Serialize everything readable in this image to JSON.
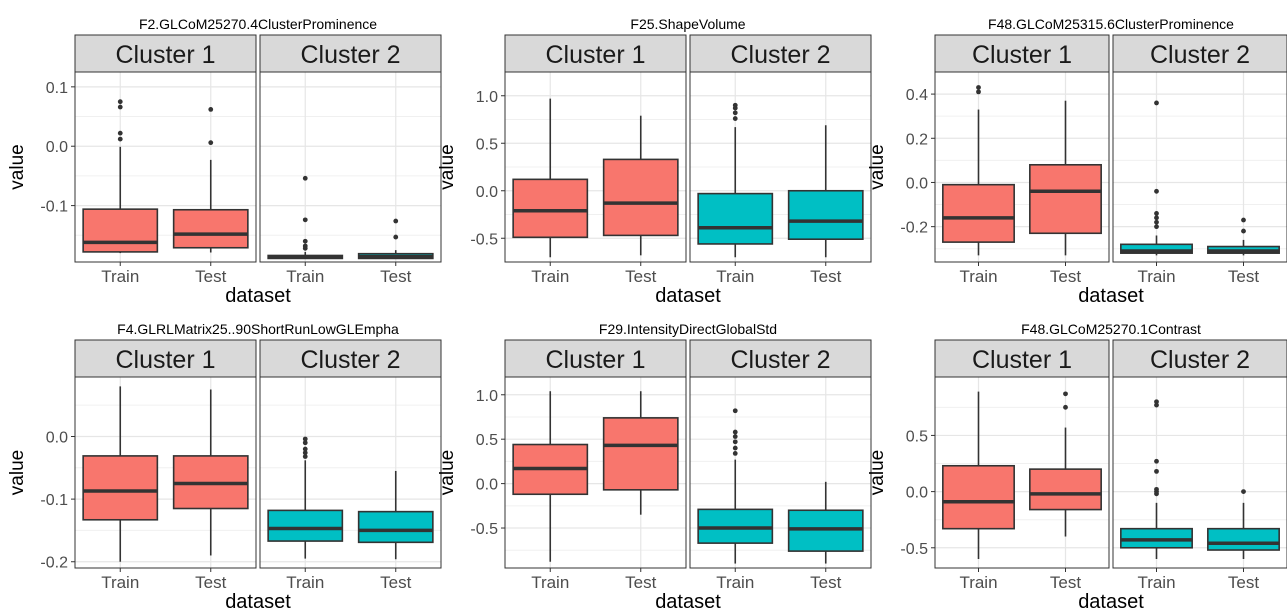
{
  "x_axis_label": "dataset",
  "y_axis_label": "value",
  "colors": {
    "cluster1": "#F8766D",
    "cluster2": "#00BFC4"
  },
  "chart_data": [
    {
      "type": "boxplot",
      "title": "F2.GLCoM25270.4ClusterProminence",
      "xlabel": "dataset",
      "ylabel": "value",
      "ylim": [
        -0.195,
        0.125
      ],
      "yticks": [
        0.1,
        0.0,
        -0.1
      ],
      "ytick_labels": [
        "0.1",
        "0.0",
        "-0.1"
      ],
      "facets": [
        {
          "name": "Cluster 1",
          "color": "#F8766D",
          "categories": [
            "Train",
            "Test"
          ],
          "boxes": [
            {
              "category": "Train",
              "min": -0.18,
              "q1": -0.178,
              "median": -0.162,
              "q3": -0.106,
              "max": -0.001,
              "outliers": [
                0.075,
                0.066,
                0.022,
                0.012
              ]
            },
            {
              "category": "Test",
              "min": -0.179,
              "q1": -0.171,
              "median": -0.148,
              "q3": -0.107,
              "max": -0.023,
              "outliers": [
                0.062,
                0.006
              ]
            }
          ]
        },
        {
          "name": "Cluster 2",
          "color": "#00BFC4",
          "categories": [
            "Train",
            "Test"
          ],
          "boxes": [
            {
              "category": "Train",
              "min": -0.19,
              "q1": -0.189,
              "median": -0.187,
              "q3": -0.184,
              "max": -0.178,
              "outliers": [
                -0.054,
                -0.124,
                -0.16,
                -0.168,
                -0.172
              ]
            },
            {
              "category": "Test",
              "min": -0.19,
              "q1": -0.189,
              "median": -0.186,
              "q3": -0.181,
              "max": -0.175,
              "outliers": [
                -0.126,
                -0.153
              ]
            }
          ]
        }
      ]
    },
    {
      "type": "boxplot",
      "title": "F25.ShapeVolume",
      "xlabel": "dataset",
      "ylabel": "value",
      "ylim": [
        -0.75,
        1.25
      ],
      "yticks": [
        1.0,
        0.5,
        0.0,
        -0.5
      ],
      "ytick_labels": [
        "1.0",
        "0.5",
        "0.0",
        "-0.5"
      ],
      "facets": [
        {
          "name": "Cluster 1",
          "color": "#F8766D",
          "categories": [
            "Train",
            "Test"
          ],
          "boxes": [
            {
              "category": "Train",
              "min": -0.7,
              "q1": -0.49,
              "median": -0.21,
              "q3": 0.12,
              "max": 0.97,
              "outliers": []
            },
            {
              "category": "Test",
              "min": -0.68,
              "q1": -0.47,
              "median": -0.13,
              "q3": 0.33,
              "max": 0.79,
              "outliers": []
            }
          ]
        },
        {
          "name": "Cluster 2",
          "color": "#00BFC4",
          "categories": [
            "Train",
            "Test"
          ],
          "boxes": [
            {
              "category": "Train",
              "min": -0.7,
              "q1": -0.56,
              "median": -0.39,
              "q3": -0.03,
              "max": 0.67,
              "outliers": [
                0.9,
                0.87,
                0.82,
                0.76
              ]
            },
            {
              "category": "Test",
              "min": -0.7,
              "q1": -0.51,
              "median": -0.32,
              "q3": 0.0,
              "max": 0.69,
              "outliers": []
            }
          ]
        }
      ]
    },
    {
      "type": "boxplot",
      "title": "F48.GLCoM25315.6ClusterProminence",
      "xlabel": "dataset",
      "ylabel": "value",
      "ylim": [
        -0.36,
        0.5
      ],
      "yticks": [
        0.4,
        0.2,
        0.0,
        -0.2
      ],
      "ytick_labels": [
        "0.4",
        "0.2",
        "0.0",
        "-0.2"
      ],
      "facets": [
        {
          "name": "Cluster 1",
          "color": "#F8766D",
          "categories": [
            "Train",
            "Test"
          ],
          "boxes": [
            {
              "category": "Train",
              "min": -0.33,
              "q1": -0.27,
              "median": -0.16,
              "q3": -0.01,
              "max": 0.33,
              "outliers": [
                0.43,
                0.41
              ]
            },
            {
              "category": "Test",
              "min": -0.33,
              "q1": -0.23,
              "median": -0.04,
              "q3": 0.08,
              "max": 0.37,
              "outliers": []
            }
          ]
        },
        {
          "name": "Cluster 2",
          "color": "#00BFC4",
          "categories": [
            "Train",
            "Test"
          ],
          "boxes": [
            {
              "category": "Train",
              "min": -0.33,
              "q1": -0.32,
              "median": -0.31,
              "q3": -0.28,
              "max": -0.24,
              "outliers": [
                0.36,
                -0.04,
                -0.14,
                -0.16,
                -0.18,
                -0.2
              ]
            },
            {
              "category": "Test",
              "min": -0.33,
              "q1": -0.32,
              "median": -0.31,
              "q3": -0.29,
              "max": -0.26,
              "outliers": [
                -0.17,
                -0.22
              ]
            }
          ]
        }
      ]
    },
    {
      "type": "boxplot",
      "title": "F4.GLRLMatrix25..90ShortRunLowGLEmpha",
      "xlabel": "dataset",
      "ylabel": "value",
      "ylim": [
        -0.21,
        0.095
      ],
      "yticks": [
        0.0,
        -0.1,
        -0.2
      ],
      "ytick_labels": [
        "0.0",
        "-0.1",
        "-0.2"
      ],
      "facets": [
        {
          "name": "Cluster 1",
          "color": "#F8766D",
          "categories": [
            "Train",
            "Test"
          ],
          "boxes": [
            {
              "category": "Train",
              "min": -0.2,
              "q1": -0.133,
              "median": -0.087,
              "q3": -0.031,
              "max": 0.08,
              "outliers": []
            },
            {
              "category": "Test",
              "min": -0.19,
              "q1": -0.115,
              "median": -0.075,
              "q3": -0.031,
              "max": 0.075,
              "outliers": []
            }
          ]
        },
        {
          "name": "Cluster 2",
          "color": "#00BFC4",
          "categories": [
            "Train",
            "Test"
          ],
          "boxes": [
            {
              "category": "Train",
              "min": -0.195,
              "q1": -0.167,
              "median": -0.147,
              "q3": -0.118,
              "max": -0.038,
              "outliers": [
                -0.004,
                -0.01,
                -0.02,
                -0.026,
                -0.032
              ]
            },
            {
              "category": "Test",
              "min": -0.196,
              "q1": -0.169,
              "median": -0.15,
              "q3": -0.12,
              "max": -0.055,
              "outliers": []
            }
          ]
        }
      ]
    },
    {
      "type": "boxplot",
      "title": "F29.IntensityDirectGlobalStd",
      "xlabel": "dataset",
      "ylabel": "value",
      "ylim": [
        -0.95,
        1.2
      ],
      "yticks": [
        1.0,
        0.5,
        0.0,
        -0.5
      ],
      "ytick_labels": [
        "1.0",
        "0.5",
        "0.0",
        "-0.5"
      ],
      "facets": [
        {
          "name": "Cluster 1",
          "color": "#F8766D",
          "categories": [
            "Train",
            "Test"
          ],
          "boxes": [
            {
              "category": "Train",
              "min": -0.88,
              "q1": -0.12,
              "median": 0.17,
              "q3": 0.44,
              "max": 1.04,
              "outliers": []
            },
            {
              "category": "Test",
              "min": -0.35,
              "q1": -0.07,
              "median": 0.43,
              "q3": 0.74,
              "max": 1.04,
              "outliers": []
            }
          ]
        },
        {
          "name": "Cluster 2",
          "color": "#00BFC4",
          "categories": [
            "Train",
            "Test"
          ],
          "boxes": [
            {
              "category": "Train",
              "min": -0.9,
              "q1": -0.67,
              "median": -0.5,
              "q3": -0.29,
              "max": 0.27,
              "outliers": [
                0.82,
                0.58,
                0.53,
                0.47,
                0.4,
                0.34
              ]
            },
            {
              "category": "Test",
              "min": -0.9,
              "q1": -0.76,
              "median": -0.51,
              "q3": -0.3,
              "max": 0.02,
              "outliers": []
            }
          ]
        }
      ]
    },
    {
      "type": "boxplot",
      "title": "F48.GLCoM25270.1Contrast",
      "xlabel": "dataset",
      "ylabel": "value",
      "ylim": [
        -0.68,
        1.02
      ],
      "yticks": [
        0.5,
        0.0,
        -0.5
      ],
      "ytick_labels": [
        "0.5",
        "0.0",
        "-0.5"
      ],
      "facets": [
        {
          "name": "Cluster 1",
          "color": "#F8766D",
          "categories": [
            "Train",
            "Test"
          ],
          "boxes": [
            {
              "category": "Train",
              "min": -0.6,
              "q1": -0.33,
              "median": -0.09,
              "q3": 0.23,
              "max": 0.89,
              "outliers": []
            },
            {
              "category": "Test",
              "min": -0.4,
              "q1": -0.16,
              "median": -0.02,
              "q3": 0.2,
              "max": 0.57,
              "outliers": [
                0.87,
                0.75
              ]
            }
          ]
        },
        {
          "name": "Cluster 2",
          "color": "#00BFC4",
          "categories": [
            "Train",
            "Test"
          ],
          "boxes": [
            {
              "category": "Train",
              "min": -0.6,
              "q1": -0.5,
              "median": -0.43,
              "q3": -0.33,
              "max": -0.1,
              "outliers": [
                0.8,
                0.77,
                0.27,
                0.18,
                0.02,
                0.0,
                -0.02
              ]
            },
            {
              "category": "Test",
              "min": -0.6,
              "q1": -0.52,
              "median": -0.46,
              "q3": -0.33,
              "max": -0.1,
              "outliers": [
                0.0
              ]
            }
          ]
        }
      ]
    }
  ]
}
